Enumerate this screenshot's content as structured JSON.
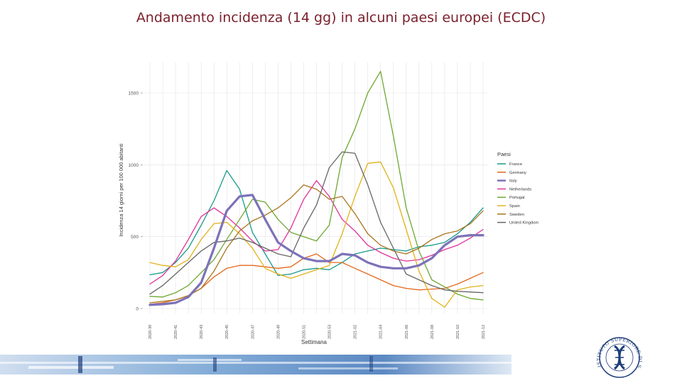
{
  "slide": {
    "title": "Andamento incidenza (14 gg) in alcuni paesi europei (ECDC)",
    "logo_text": "ISTITUTO SUPERIORE DI SANITÀ"
  },
  "colors": {
    "title": "#7a1f2b",
    "France": "#1a9a8a",
    "Germany": "#e2681c",
    "Italy": "#7b72b8",
    "Netherlands": "#e0339a",
    "Portugal": "#6ea832",
    "Spain": "#e0b21a",
    "Sweden": "#a8741e",
    "United Kingdom": "#666666",
    "logo": "#1e3c7a"
  },
  "chart_data": {
    "type": "line",
    "xlabel": "Settimana",
    "ylabel": "Incidenza 14 giorni per 100 000 abitanti",
    "ylim": [
      0,
      1650
    ],
    "yticks": [
      0,
      500,
      1000,
      1500
    ],
    "yticklabels": [
      "0",
      "500",
      "1000",
      "1500"
    ],
    "legend_title": "Paesi",
    "legend_position": "right",
    "grid": true,
    "x": [
      "2020-39",
      "2020-40",
      "2020-41",
      "2020-42",
      "2020-43",
      "2020-44",
      "2020-45",
      "2020-46",
      "2020-47",
      "2020-48",
      "2020-49",
      "2020-50",
      "2020-51",
      "2020-52",
      "2020-53",
      "2021-01",
      "2021-02",
      "2021-03",
      "2021-04",
      "2021-05",
      "2021-06",
      "2021-07",
      "2021-08",
      "2021-09",
      "2021-10",
      "2021-11",
      "2021-12"
    ],
    "xticklabels": [
      "2020-39",
      "2020-41",
      "2020-43",
      "2020-45",
      "2020-47",
      "2020-49",
      "2020-51",
      "2020-53",
      "2021-02",
      "2021-04",
      "2021-06",
      "2021-08",
      "2021-10",
      "2021-12"
    ],
    "xtick_indices": [
      0,
      2,
      4,
      6,
      8,
      10,
      12,
      14,
      16,
      18,
      20,
      22,
      24,
      26
    ],
    "series": [
      {
        "name": "France",
        "values": [
          235,
          250,
          320,
          420,
          580,
          750,
          960,
          830,
          530,
          380,
          230,
          240,
          270,
          280,
          270,
          320,
          380,
          400,
          420,
          410,
          400,
          430,
          440,
          460,
          520,
          600,
          700
        ]
      },
      {
        "name": "Germany",
        "values": [
          30,
          40,
          60,
          90,
          140,
          220,
          280,
          300,
          300,
          290,
          280,
          290,
          350,
          380,
          320,
          320,
          280,
          240,
          200,
          160,
          140,
          130,
          135,
          140,
          170,
          210,
          250
        ]
      },
      {
        "name": "Italy",
        "values": [
          25,
          30,
          40,
          80,
          180,
          420,
          680,
          780,
          790,
          620,
          460,
          400,
          350,
          330,
          330,
          380,
          370,
          320,
          290,
          280,
          280,
          300,
          350,
          440,
          500,
          510,
          510
        ]
      },
      {
        "name": "Netherlands",
        "values": [
          170,
          230,
          330,
          480,
          640,
          700,
          640,
          560,
          470,
          400,
          410,
          560,
          760,
          890,
          780,
          620,
          540,
          440,
          390,
          350,
          330,
          340,
          370,
          410,
          440,
          490,
          550
        ]
      },
      {
        "name": "Portugal",
        "values": [
          85,
          80,
          110,
          160,
          250,
          340,
          480,
          620,
          760,
          740,
          620,
          530,
          500,
          470,
          580,
          1050,
          1250,
          1500,
          1650,
          1200,
          700,
          400,
          200,
          150,
          100,
          70,
          60
        ]
      },
      {
        "name": "Spain",
        "values": [
          320,
          300,
          290,
          340,
          480,
          590,
          600,
          520,
          420,
          280,
          240,
          210,
          240,
          270,
          300,
          520,
          780,
          1010,
          1020,
          840,
          550,
          260,
          70,
          10,
          130,
          150,
          160
        ]
      },
      {
        "name": "Sweden",
        "values": [
          40,
          50,
          60,
          90,
          140,
          260,
          420,
          540,
          610,
          650,
          700,
          770,
          860,
          830,
          760,
          780,
          660,
          520,
          440,
          400,
          380,
          420,
          480,
          520,
          540,
          590,
          680
        ]
      },
      {
        "name": "United Kingdom",
        "values": [
          100,
          160,
          240,
          320,
          400,
          460,
          470,
          490,
          460,
          420,
          380,
          360,
          560,
          720,
          980,
          1090,
          1080,
          860,
          600,
          420,
          240,
          200,
          160,
          130,
          120,
          115,
          110
        ]
      }
    ]
  }
}
